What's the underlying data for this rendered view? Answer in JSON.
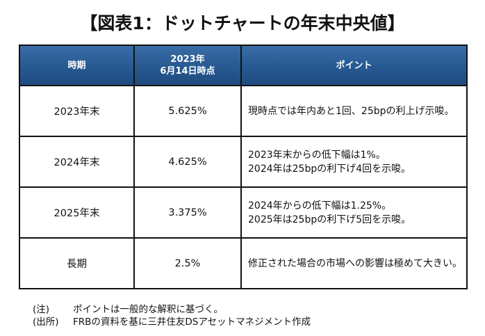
{
  "title": "【図表1：ドットチャートの年末中央値】",
  "table": {
    "headers": [
      "時期",
      "2023年\n6月14日時点",
      "ポイント"
    ],
    "header_col2_line1": "2023年",
    "header_col2_line2": "6月14日時点",
    "rows": [
      {
        "period": "2023年末",
        "value": "5.625%",
        "point1": "現時点では年内あと1回、25bpの利上げ示唆。",
        "point2": ""
      },
      {
        "period": "2024年末",
        "value": "4.625%",
        "point1": "2023年末からの低下幅は1%。",
        "point2": "2024年は25bpの利下げ4回を示唆。"
      },
      {
        "period": "2025年末",
        "value": "3.375%",
        "point1": "2024年からの低下幅は1.25%。",
        "point2": "2025年は25bpの利下げ5回を示唆。"
      },
      {
        "period": "長期",
        "value": "2.5%",
        "point1": "修正された場合の市場への影響は極めて大きい。",
        "point2": ""
      }
    ],
    "header_color": "#285a93"
  },
  "notes": [
    {
      "label": "(注)",
      "text": "ポイントは一般的な解釈に基づく。"
    },
    {
      "label": "(出所)",
      "text": "FRBの資料を基に三井住友DSアセットマネジメント作成"
    }
  ]
}
